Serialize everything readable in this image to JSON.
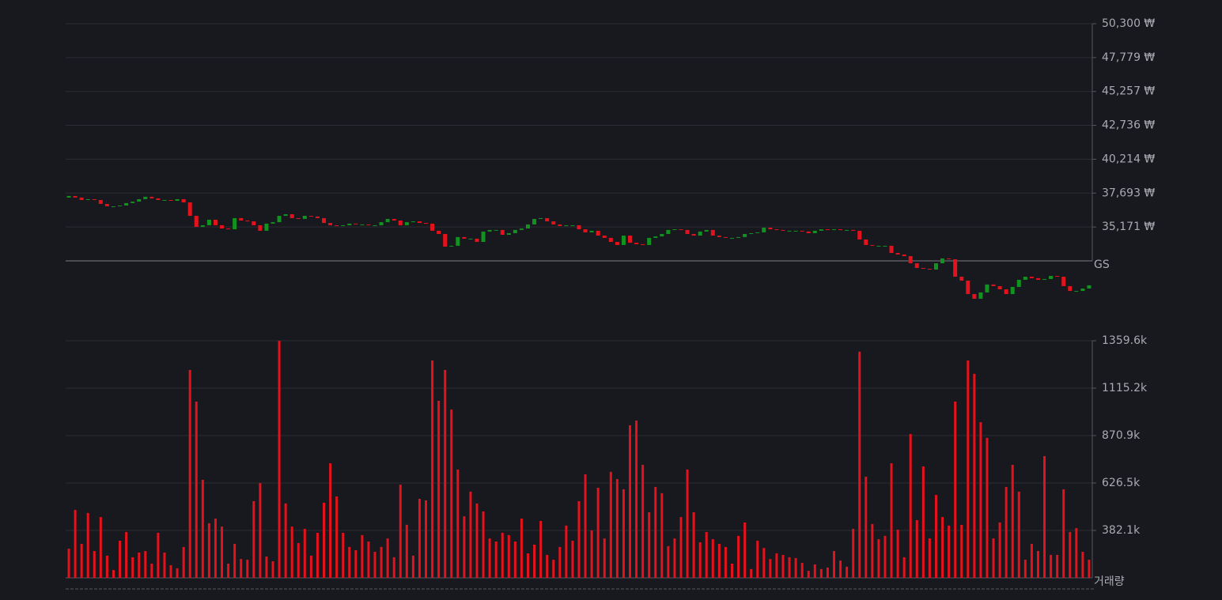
{
  "chart_data": [
    {
      "type": "candlestick",
      "label": "GS",
      "open": [
        37360,
        37480,
        37360,
        37180,
        37240,
        37180,
        36890,
        36710,
        36710,
        36770,
        36950,
        37060,
        37240,
        37420,
        37300,
        37180,
        37180,
        37120,
        37240,
        37000,
        36000,
        35180,
        35300,
        35710,
        35300,
        35060,
        35000,
        35830,
        35650,
        35590,
        35300,
        34890,
        35420,
        35530,
        36000,
        36120,
        35830,
        35770,
        36000,
        35950,
        35830,
        35470,
        35300,
        35240,
        35300,
        35420,
        35360,
        35360,
        35300,
        35300,
        35530,
        35770,
        35650,
        35300,
        35530,
        35590,
        35470,
        35420,
        34890,
        34650,
        33710,
        33770,
        34420,
        34300,
        34300,
        34060,
        34830,
        34950,
        34950,
        34590,
        34710,
        34950,
        35060,
        35360,
        35770,
        35830,
        35590,
        35360,
        35240,
        35300,
        35300,
        35000,
        34770,
        34890,
        34530,
        34360,
        34060,
        33830,
        34530,
        34000,
        33890,
        33830,
        34360,
        34470,
        34650,
        34950,
        35000,
        34950,
        34650,
        34530,
        34830,
        34950,
        34530,
        34420,
        34360,
        34360,
        34420,
        34650,
        34710,
        34770,
        35120,
        35000,
        34950,
        34890,
        34890,
        34890,
        34830,
        34710,
        34890,
        35000,
        34950,
        35000,
        34950,
        34950,
        34890,
        34240,
        33830,
        33770,
        33770,
        33770,
        33240,
        33120,
        33000,
        32470,
        32120,
        32060,
        32000,
        32470,
        32830,
        32770,
        31470,
        31180,
        30180,
        29830,
        30300,
        30890,
        30770,
        30530,
        30180,
        30710,
        31240,
        31470,
        31360,
        31240,
        31300,
        31530,
        31470,
        30770,
        30410,
        30410,
        30590
      ],
      "close": [
        37480,
        37360,
        37180,
        37240,
        37180,
        36890,
        36710,
        36710,
        36770,
        36950,
        37060,
        37240,
        37420,
        37300,
        37180,
        37180,
        37120,
        37240,
        37000,
        36000,
        35180,
        35300,
        35710,
        35300,
        35060,
        35000,
        35830,
        35650,
        35590,
        35300,
        34890,
        35420,
        35530,
        36000,
        36120,
        35830,
        35770,
        36000,
        35950,
        35830,
        35470,
        35300,
        35240,
        35300,
        35420,
        35360,
        35360,
        35300,
        35300,
        35530,
        35770,
        35650,
        35300,
        35530,
        35590,
        35470,
        35420,
        34890,
        34650,
        33710,
        33770,
        34420,
        34300,
        34300,
        34060,
        34830,
        34950,
        34950,
        34590,
        34710,
        34950,
        35060,
        35360,
        35770,
        35830,
        35590,
        35360,
        35240,
        35300,
        35300,
        35000,
        34770,
        34890,
        34530,
        34360,
        34060,
        33830,
        34530,
        34000,
        33890,
        33830,
        34360,
        34470,
        34650,
        34950,
        35000,
        34950,
        34650,
        34530,
        34830,
        34950,
        34530,
        34420,
        34360,
        34360,
        34420,
        34650,
        34710,
        34770,
        35120,
        35000,
        34950,
        34890,
        34890,
        34890,
        34830,
        34710,
        34890,
        35000,
        34950,
        35000,
        34950,
        34950,
        34890,
        34240,
        33830,
        33770,
        33770,
        33770,
        33240,
        33120,
        33000,
        32470,
        32120,
        32060,
        32000,
        32470,
        32830,
        32770,
        31470,
        31180,
        30180,
        29830,
        30300,
        30890,
        30770,
        30530,
        30180,
        30710,
        31240,
        31470,
        31360,
        31240,
        31300,
        31530,
        31470,
        30770,
        30410,
        30410,
        30590,
        30830
      ],
      "up_color": "#11931f",
      "down_color": "#e3121c",
      "ylim": [
        32649,
        50300
      ],
      "yticks": [
        {
          "value": 50300,
          "label": "50,300 ₩"
        },
        {
          "value": 47779,
          "label": "47,779 ₩"
        },
        {
          "value": 45257,
          "label": "45,257 ₩"
        },
        {
          "value": 42736,
          "label": "42,736 ₩"
        },
        {
          "value": 40214,
          "label": "40,214 ₩"
        },
        {
          "value": 37693,
          "label": "37,693 ₩"
        },
        {
          "value": 35171,
          "label": "35,171 ₩"
        }
      ],
      "grid": true
    },
    {
      "type": "bar",
      "label": "거래량",
      "values": [
        288000,
        488000,
        313000,
        472000,
        276000,
        451000,
        252000,
        178000,
        329000,
        374000,
        244000,
        268000,
        276000,
        211000,
        370000,
        268000,
        203000,
        187000,
        297000,
        1209000,
        1046000,
        643000,
        419000,
        443000,
        402000,
        211000,
        313000,
        235000,
        231000,
        533000,
        626000,
        248000,
        223000,
        1359000,
        521000,
        402000,
        317000,
        390000,
        252000,
        370000,
        525000,
        728000,
        557000,
        370000,
        297000,
        280000,
        358000,
        325000,
        272000,
        297000,
        341000,
        244000,
        618000,
        411000,
        252000,
        545000,
        537000,
        1258000,
        1050000,
        1209000,
        1005000,
        696000,
        455000,
        582000,
        521000,
        480000,
        341000,
        325000,
        370000,
        358000,
        325000,
        443000,
        264000,
        309000,
        431000,
        256000,
        231000,
        297000,
        407000,
        329000,
        533000,
        671000,
        382000,
        602000,
        341000,
        684000,
        647000,
        594000,
        924000,
        948000,
        720000,
        476000,
        606000,
        574000,
        301000,
        341000,
        451000,
        696000,
        476000,
        321000,
        374000,
        337000,
        313000,
        297000,
        211000,
        354000,
        423000,
        183000,
        329000,
        292000,
        235000,
        264000,
        256000,
        244000,
        240000,
        215000,
        174000,
        207000,
        183000,
        191000,
        276000,
        227000,
        195000,
        390000,
        1303000,
        659000,
        415000,
        337000,
        354000,
        728000,
        386000,
        244000,
        879000,
        435000,
        712000,
        341000,
        565000,
        451000,
        407000,
        1046000,
        411000,
        1258000,
        1189000,
        940000,
        859000,
        341000,
        423000,
        606000,
        720000,
        582000,
        231000,
        313000,
        276000,
        765000,
        256000,
        256000,
        594000,
        374000,
        394000,
        272000,
        231000
      ],
      "color": "#e3121c",
      "ylim": [
        137700,
        1359600
      ],
      "yticks": [
        {
          "value": 1359600,
          "label": "1359.6k"
        },
        {
          "value": 1115200,
          "label": "1115.2k"
        },
        {
          "value": 870900,
          "label": "870.9k"
        },
        {
          "value": 626500,
          "label": "626.5k"
        },
        {
          "value": 382100,
          "label": "382.1k"
        }
      ],
      "grid": true
    }
  ]
}
